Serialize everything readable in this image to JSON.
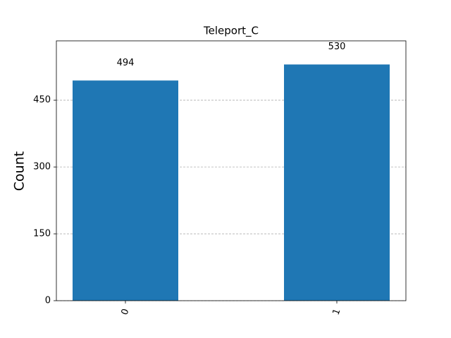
{
  "chart_data": {
    "type": "bar",
    "title": "Teleport_C",
    "y_label": "Count",
    "categories": [
      "0",
      "1"
    ],
    "values": [
      494,
      530
    ],
    "color": "#1f77b4",
    "ylim": [
      0,
      583
    ],
    "yticks": [
      0,
      150,
      300,
      450
    ],
    "grid": true
  }
}
